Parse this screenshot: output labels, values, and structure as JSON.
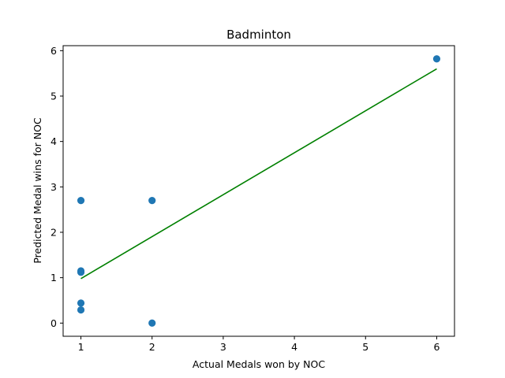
{
  "chart_data": {
    "type": "scatter",
    "title": "Badminton",
    "xlabel": "Actual Medals won by NOC",
    "ylabel": "Predicted Medal wins for NOC",
    "xlim": [
      0.75,
      6.25
    ],
    "ylim": [
      -0.29,
      6.11
    ],
    "xticks": [
      1,
      2,
      3,
      4,
      5,
      6
    ],
    "yticks": [
      0,
      1,
      2,
      3,
      4,
      5,
      6
    ],
    "grid": false,
    "series": [
      {
        "type": "scatter",
        "color": "#1f77b4",
        "points": [
          {
            "x": 1,
            "y": 2.7
          },
          {
            "x": 1,
            "y": 1.15
          },
          {
            "x": 1,
            "y": 1.12
          },
          {
            "x": 1,
            "y": 0.44
          },
          {
            "x": 1,
            "y": 0.29
          },
          {
            "x": 2,
            "y": 2.7
          },
          {
            "x": 2,
            "y": 0.0
          },
          {
            "x": 6,
            "y": 5.82
          }
        ]
      },
      {
        "type": "line",
        "color": "#008000",
        "points": [
          {
            "x": 1,
            "y": 0.98
          },
          {
            "x": 6,
            "y": 5.6
          }
        ]
      }
    ]
  }
}
